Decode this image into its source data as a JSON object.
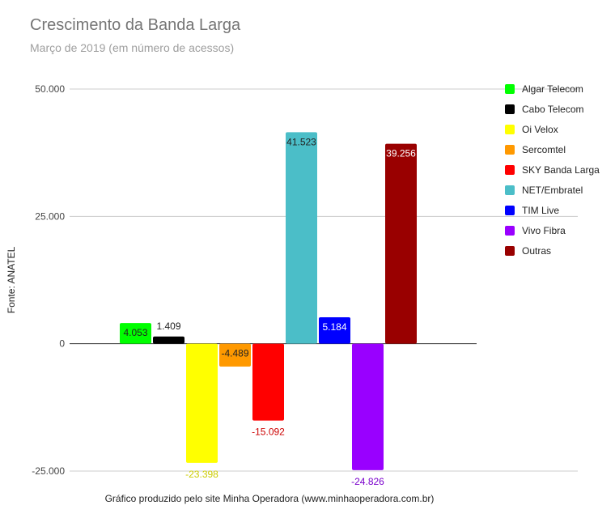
{
  "chart_data": {
    "type": "bar",
    "title": "Crescimento da Banda Larga",
    "subtitle": "Março de 2019 (em número de acessos)",
    "ylabel": "Fonte: ANATEL",
    "xlabel": "Gráfico produzido pelo site Minha Operadora (www.minhaoperadora.com.br)",
    "ylim": [
      -25000,
      50000
    ],
    "yticks": [
      {
        "value": 50000,
        "label": "50.000"
      },
      {
        "value": 25000,
        "label": "25.000"
      },
      {
        "value": 0,
        "label": "0"
      },
      {
        "value": -25000,
        "label": "-25.000"
      }
    ],
    "legend_position": "right",
    "series": [
      {
        "name": "Algar Telecom",
        "value": 4053,
        "label": "4.053",
        "color": "#00ff00",
        "label_color": "#222222",
        "label_pos": "inside-top"
      },
      {
        "name": "Cabo Telecom",
        "value": 1409,
        "label": "1.409",
        "color": "#000000",
        "label_color": "#222222",
        "label_pos": "above"
      },
      {
        "name": "Oi Velox",
        "value": -23398,
        "label": "-23.398",
        "color": "#ffff00",
        "label_color": "#cccc00",
        "label_pos": "below"
      },
      {
        "name": "Sercomtel",
        "value": -4489,
        "label": "-4.489",
        "color": "#ff9900",
        "label_color": "#222222",
        "label_pos": "inside-top"
      },
      {
        "name": "SKY Banda Larga",
        "value": -15092,
        "label": "-15.092",
        "color": "#ff0000",
        "label_color": "#cc0000",
        "label_pos": "below"
      },
      {
        "name": "NET/Embratel",
        "value": 41523,
        "label": "41.523",
        "color": "#4bbec8",
        "label_color": "#222222",
        "label_pos": "inside-top"
      },
      {
        "name": "TIM Live",
        "value": 5184,
        "label": "5.184",
        "color": "#0000ff",
        "label_color": "#ffffff",
        "label_pos": "inside-top"
      },
      {
        "name": "Vivo Fibra",
        "value": -24826,
        "label": "-24.826",
        "color": "#9900ff",
        "label_color": "#7a00cc",
        "label_pos": "below"
      },
      {
        "name": "Outras",
        "value": 39256,
        "label": "39.256",
        "color": "#990000",
        "label_color": "#ffffff",
        "label_pos": "inside-top"
      }
    ]
  }
}
